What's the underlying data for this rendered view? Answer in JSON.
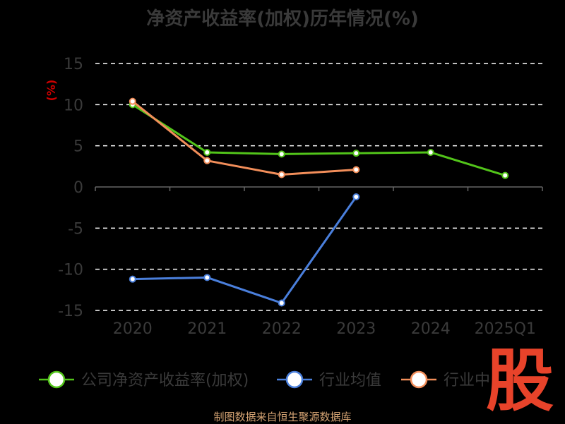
{
  "title": "净资产收益率(加权)历年情况(%)",
  "footer": "制图数据来自恒生聚源数据库",
  "watermark_char": "股",
  "chart_data": {
    "type": "line",
    "title": "净资产收益率(加权)历年情况(%)",
    "ylabel": "(%)",
    "xlabel": "",
    "categories": [
      "2020",
      "2021",
      "2022",
      "2023",
      "2024",
      "2025Q1"
    ],
    "ylim": [
      -15,
      15
    ],
    "yticks": [
      15,
      10,
      5,
      0,
      -5,
      -10,
      -15
    ],
    "grid": true,
    "legend_position": "bottom",
    "series": [
      {
        "name": "公司净资产收益率(加权)",
        "color": "#52c41a",
        "values": [
          10.0,
          4.2,
          4.0,
          4.1,
          4.2,
          1.4
        ]
      },
      {
        "name": "行业均值",
        "color": "#4a7fdc",
        "values": [
          -11.2,
          -11.0,
          -14.1,
          -1.2,
          null,
          null
        ]
      },
      {
        "name": "行业中",
        "color": "#f28e5a",
        "values": [
          10.4,
          3.2,
          1.5,
          2.1,
          null,
          null
        ]
      }
    ]
  }
}
